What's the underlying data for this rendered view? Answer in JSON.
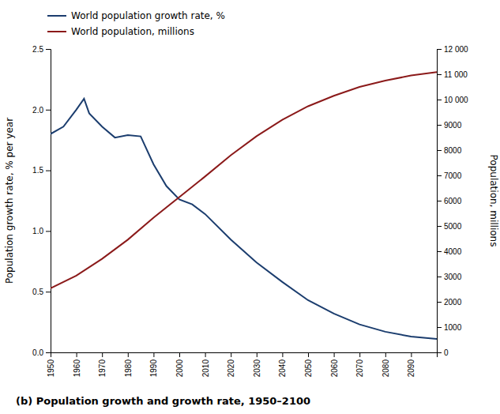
{
  "chart_data": {
    "type": "line",
    "title": "(b) Population growth and growth rate, 1950–2100",
    "ylabel": "Population growth rate, % per year",
    "y2label": "Population, millions",
    "legend": "upper left",
    "grid": false,
    "xlim": [
      1950,
      2100
    ],
    "xticks": [
      1950,
      1960,
      1970,
      1980,
      1990,
      2000,
      2010,
      2020,
      2030,
      2040,
      2050,
      2060,
      2070,
      2080,
      2090
    ],
    "ylim": [
      0,
      2.5
    ],
    "yticks": [
      {
        "value": 0,
        "label": "0.0"
      },
      0.5,
      {
        "value": 1.0,
        "label": "1.0"
      },
      1.5,
      {
        "value": 2.0,
        "label": "2.0"
      },
      2.5
    ],
    "y2lim": [
      0,
      12000
    ],
    "y2ticks": [
      0,
      1000,
      2000,
      3000,
      4000,
      5000,
      6000,
      7000,
      8000,
      9000,
      {
        "value": 10000,
        "label": "10 000"
      },
      {
        "value": 11000,
        "label": "11 000"
      },
      {
        "value": 12000,
        "label": "12 000"
      }
    ],
    "series": [
      {
        "name": "World population growth rate, %",
        "color": "#1b3d6e",
        "axis": "y",
        "x": [
          1950,
          1955,
          1960,
          1963,
          1965,
          1970,
          1975,
          1980,
          1985,
          1990,
          1995,
          2000,
          2005,
          2010,
          2020,
          2030,
          2040,
          2050,
          2060,
          2070,
          2080,
          2090,
          2100
        ],
        "values": [
          1.8,
          1.86,
          2.0,
          2.09,
          1.97,
          1.86,
          1.77,
          1.79,
          1.78,
          1.55,
          1.37,
          1.26,
          1.22,
          1.14,
          0.93,
          0.74,
          0.58,
          0.43,
          0.32,
          0.23,
          0.17,
          0.13,
          0.11
        ]
      },
      {
        "name": "World population, millions",
        "color": "#8b1a1a",
        "axis": "y2",
        "x": [
          1950,
          1960,
          1970,
          1980,
          1990,
          2000,
          2010,
          2020,
          2030,
          2040,
          2050,
          2060,
          2070,
          2080,
          2090,
          2100
        ],
        "values": [
          2536,
          3034,
          3700,
          4458,
          5327,
          6143,
          6957,
          7795,
          8549,
          9200,
          9735,
          10150,
          10500,
          10750,
          10950,
          11090
        ]
      }
    ]
  }
}
